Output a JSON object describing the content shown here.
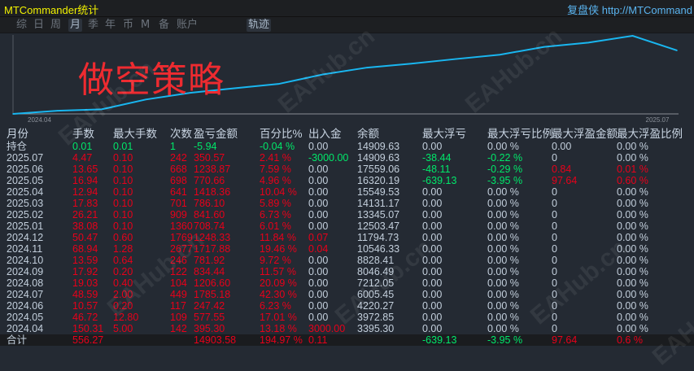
{
  "window": {
    "title": "MTCommander统计",
    "brand": "复盘侠 http://MTCommand"
  },
  "tabs": [
    {
      "label": "综"
    },
    {
      "label": "日"
    },
    {
      "label": "周"
    },
    {
      "label": "月",
      "active": true
    },
    {
      "label": "季"
    },
    {
      "label": "年"
    },
    {
      "label": "币"
    },
    {
      "label": "M"
    },
    {
      "label": "备"
    },
    {
      "label": "账户"
    }
  ],
  "trace_tab": "轨迹",
  "overlay_text": "做空策略",
  "watermark": "EAHub.cn",
  "colors": {
    "line": "#19b6f0",
    "profit": "#e8001a",
    "loss": "#00e86a",
    "neutral": "#c3cfdc",
    "title": "#f2f200"
  },
  "chart_data": {
    "type": "line",
    "x_tick_labels": [
      "2024.04",
      "2025.07"
    ],
    "x": [
      "2024.04",
      "2024.05",
      "2024.06",
      "2024.07",
      "2024.08",
      "2024.09",
      "2024.10",
      "2024.11",
      "2024.12",
      "2025.01",
      "2025.02",
      "2025.03",
      "2025.04",
      "2025.05",
      "2025.06",
      "2025.07"
    ],
    "y": [
      3395.3,
      3972.85,
      4220.27,
      6005.45,
      7212.05,
      8046.49,
      8828.41,
      10546.33,
      11794.73,
      12503.47,
      13345.07,
      14131.17,
      15549.53,
      16320.19,
      17559.06,
      14909.63
    ],
    "grid": false
  },
  "table": {
    "headers": [
      "月份",
      "手数",
      "最大手数",
      "次数",
      "盈亏金额",
      "百分比%",
      "出入金",
      "余额",
      "最大浮亏",
      "最大浮亏比例",
      "最大浮盈金额",
      "最大浮盈比例"
    ],
    "rows": [
      {
        "cells": [
          "持仓",
          "0.01",
          "0.01",
          "1",
          "-5.94",
          "-0.04 %",
          "0.00",
          "14909.63",
          "0.00",
          "0.00 %",
          "0.00",
          "0.00 %"
        ],
        "colors": [
          "w",
          "g",
          "g",
          "g",
          "g",
          "g",
          "w",
          "w",
          "w",
          "w",
          "w",
          "w"
        ]
      },
      {
        "cells": [
          "2025.07",
          "4.47",
          "0.10",
          "242",
          "350.57",
          "2.41 %",
          "-3000.00",
          "14909.63",
          "-38.44",
          "-0.22 %",
          "0",
          "0.00 %"
        ],
        "colors": [
          "w",
          "r",
          "r",
          "r",
          "r",
          "r",
          "g",
          "w",
          "g",
          "g",
          "w",
          "w"
        ]
      },
      {
        "cells": [
          "2025.06",
          "13.65",
          "0.10",
          "668",
          "1238.87",
          "7.59 %",
          "0.00",
          "17559.06",
          "-48.11",
          "-0.29 %",
          "0.84",
          "0.01 %"
        ],
        "colors": [
          "w",
          "r",
          "r",
          "r",
          "r",
          "r",
          "w",
          "w",
          "g",
          "g",
          "r",
          "r"
        ]
      },
      {
        "cells": [
          "2025.05",
          "16.94",
          "0.10",
          "698",
          "770.66",
          "4.96 %",
          "0.00",
          "16320.19",
          "-639.13",
          "-3.95 %",
          "97.64",
          "0.60 %"
        ],
        "colors": [
          "w",
          "r",
          "r",
          "r",
          "r",
          "r",
          "w",
          "w",
          "g",
          "g",
          "r",
          "r"
        ]
      },
      {
        "cells": [
          "2025.04",
          "12.94",
          "0.10",
          "641",
          "1418.36",
          "10.04 %",
          "0.00",
          "15549.53",
          "0.00",
          "0.00 %",
          "0",
          "0.00 %"
        ],
        "colors": [
          "w",
          "r",
          "r",
          "r",
          "r",
          "r",
          "w",
          "w",
          "w",
          "w",
          "w",
          "w"
        ]
      },
      {
        "cells": [
          "2025.03",
          "17.83",
          "0.10",
          "701",
          "786.10",
          "5.89 %",
          "0.00",
          "14131.17",
          "0.00",
          "0.00 %",
          "0",
          "0.00 %"
        ],
        "colors": [
          "w",
          "r",
          "r",
          "r",
          "r",
          "r",
          "w",
          "w",
          "w",
          "w",
          "w",
          "w"
        ]
      },
      {
        "cells": [
          "2025.02",
          "26.21",
          "0.10",
          "909",
          "841.60",
          "6.73 %",
          "0.00",
          "13345.07",
          "0.00",
          "0.00 %",
          "0",
          "0.00 %"
        ],
        "colors": [
          "w",
          "r",
          "r",
          "r",
          "r",
          "r",
          "w",
          "w",
          "w",
          "w",
          "w",
          "w"
        ]
      },
      {
        "cells": [
          "2025.01",
          "38.08",
          "0.10",
          "1360",
          "708.74",
          "6.01 %",
          "0.00",
          "12503.47",
          "0.00",
          "0.00 %",
          "0",
          "0.00 %"
        ],
        "colors": [
          "w",
          "r",
          "r",
          "r",
          "r",
          "r",
          "w",
          "w",
          "w",
          "w",
          "w",
          "w"
        ]
      },
      {
        "cells": [
          "2024.12",
          "50.47",
          "0.60",
          "1769",
          "1248.33",
          "11.84 %",
          "0.07",
          "11794.73",
          "0.00",
          "0.00 %",
          "0",
          "0.00 %"
        ],
        "colors": [
          "w",
          "r",
          "r",
          "r",
          "r",
          "r",
          "r",
          "w",
          "w",
          "w",
          "w",
          "w"
        ]
      },
      {
        "cells": [
          "2024.11",
          "68.94",
          "1.28",
          "2677",
          "1717.88",
          "19.46 %",
          "0.04",
          "10546.33",
          "0.00",
          "0.00 %",
          "0",
          "0.00 %"
        ],
        "colors": [
          "w",
          "r",
          "r",
          "r",
          "r",
          "r",
          "r",
          "w",
          "w",
          "w",
          "w",
          "w"
        ]
      },
      {
        "cells": [
          "2024.10",
          "13.59",
          "0.64",
          "246",
          "781.92",
          "9.72 %",
          "0.00",
          "8828.41",
          "0.00",
          "0.00 %",
          "0",
          "0.00 %"
        ],
        "colors": [
          "w",
          "r",
          "r",
          "r",
          "r",
          "r",
          "w",
          "w",
          "w",
          "w",
          "w",
          "w"
        ]
      },
      {
        "cells": [
          "2024.09",
          "17.92",
          "0.20",
          "122",
          "834.44",
          "11.57 %",
          "0.00",
          "8046.49",
          "0.00",
          "0.00 %",
          "0",
          "0.00 %"
        ],
        "colors": [
          "w",
          "r",
          "r",
          "r",
          "r",
          "r",
          "w",
          "w",
          "w",
          "w",
          "w",
          "w"
        ]
      },
      {
        "cells": [
          "2024.08",
          "19.03",
          "0.40",
          "104",
          "1206.60",
          "20.09 %",
          "0.00",
          "7212.05",
          "0.00",
          "0.00 %",
          "0",
          "0.00 %"
        ],
        "colors": [
          "w",
          "r",
          "r",
          "r",
          "r",
          "r",
          "w",
          "w",
          "w",
          "w",
          "w",
          "w"
        ]
      },
      {
        "cells": [
          "2024.07",
          "48.59",
          "2.00",
          "449",
          "1785.18",
          "42.30 %",
          "0.00",
          "6005.45",
          "0.00",
          "0.00 %",
          "0",
          "0.00 %"
        ],
        "colors": [
          "w",
          "r",
          "r",
          "r",
          "r",
          "r",
          "w",
          "w",
          "w",
          "w",
          "w",
          "w"
        ]
      },
      {
        "cells": [
          "2024.06",
          "10.57",
          "0.20",
          "117",
          "247.42",
          "6.23 %",
          "0.00",
          "4220.27",
          "0.00",
          "0.00 %",
          "0",
          "0.00 %"
        ],
        "colors": [
          "w",
          "r",
          "r",
          "r",
          "r",
          "r",
          "w",
          "w",
          "w",
          "w",
          "w",
          "w"
        ]
      },
      {
        "cells": [
          "2024.05",
          "46.72",
          "12.80",
          "109",
          "577.55",
          "17.01 %",
          "0.00",
          "3972.85",
          "0.00",
          "0.00 %",
          "0",
          "0.00 %"
        ],
        "colors": [
          "w",
          "r",
          "r",
          "r",
          "r",
          "r",
          "w",
          "w",
          "w",
          "w",
          "w",
          "w"
        ]
      },
      {
        "cells": [
          "2024.04",
          "150.31",
          "5.00",
          "142",
          "395.30",
          "13.18 %",
          "3000.00",
          "3395.30",
          "0.00",
          "0.00 %",
          "0",
          "0.00 %"
        ],
        "colors": [
          "w",
          "r",
          "r",
          "r",
          "r",
          "r",
          "r",
          "w",
          "w",
          "w",
          "w",
          "w"
        ]
      }
    ],
    "total": {
      "cells": [
        "合计",
        "556.27",
        "",
        "",
        "14903.58",
        "194.97 %",
        "0.11",
        "",
        "-639.13",
        "-3.95 %",
        "97.64",
        "0.6 %"
      ],
      "colors": [
        "w",
        "r",
        "r",
        "r",
        "r",
        "r",
        "r",
        "w",
        "g",
        "g",
        "r",
        "r"
      ]
    }
  }
}
